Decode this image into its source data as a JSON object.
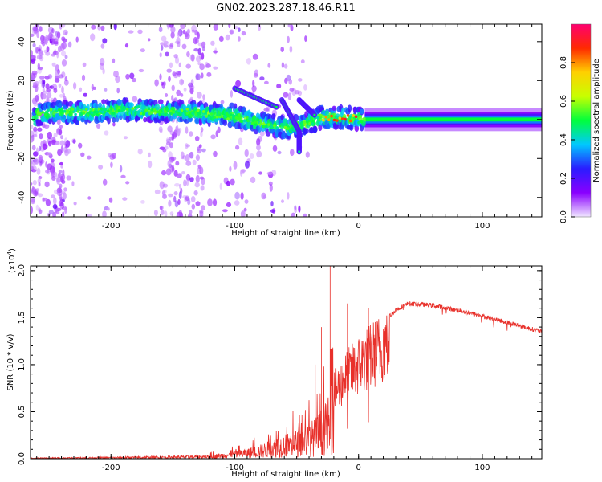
{
  "title": "GN02.2023.287.18.46.R11",
  "chart_data": [
    {
      "type": "heatmap",
      "xlabel": "Height of straight line (km)",
      "ylabel": "Frequency (Hz)",
      "xlim": [
        -265,
        148
      ],
      "ylim": [
        -50,
        49
      ],
      "xticks": [
        -200,
        -100,
        0,
        100
      ],
      "yticks": [
        -40,
        -20,
        0,
        20,
        40
      ],
      "colorbar": {
        "label": "Normalized spectral amplitude",
        "range": [
          0,
          1
        ],
        "ticks": [
          "0.0",
          "0.2",
          "0.4",
          "0.6",
          "0.8"
        ],
        "colormap": [
          "#f0e6ff",
          "#8a00ff",
          "#2a1cff",
          "#00c8ff",
          "#00ff3c",
          "#c8ff00",
          "#ffd000",
          "#ff2a00",
          "#ff0070"
        ]
      },
      "ridge": [
        {
          "x": -260,
          "y": 3
        },
        {
          "x": -220,
          "y": 4
        },
        {
          "x": -180,
          "y": 5
        },
        {
          "x": -150,
          "y": 4
        },
        {
          "x": -120,
          "y": 3
        },
        {
          "x": -100,
          "y": 2
        },
        {
          "x": -80,
          "y": -2
        },
        {
          "x": -60,
          "y": -4
        },
        {
          "x": -45,
          "y": -3
        },
        {
          "x": -30,
          "y": 1
        },
        {
          "x": -10,
          "y": 1
        },
        {
          "x": 5,
          "y": 0
        },
        {
          "x": 148,
          "y": 0
        }
      ],
      "branches": [
        {
          "x1": -100,
          "y1": 16,
          "x2": -65,
          "y2": 6
        },
        {
          "x1": -62,
          "y1": 10,
          "x2": -48,
          "y2": -6
        },
        {
          "x1": -48,
          "y1": 10,
          "x2": -35,
          "y2": 2
        },
        {
          "x1": -48,
          "y1": -6,
          "x2": -48,
          "y2": -17
        }
      ]
    },
    {
      "type": "line",
      "xlabel": "Height of straight line (km)",
      "ylabel": "SNR (10 * v/v)",
      "y_multiplier": "(x10",
      "y_multiplier_exp": "4",
      "y_multiplier_close": ")",
      "xlim": [
        -265,
        148
      ],
      "ylim": [
        0,
        2.05
      ],
      "xticks": [
        -200,
        -100,
        0,
        100
      ],
      "yticks": [
        "0.0",
        "0.5",
        "1.0",
        "1.5",
        "2.0"
      ],
      "color": "#e8302a",
      "envelope": [
        {
          "x": -265,
          "y": 0.01
        },
        {
          "x": -200,
          "y": 0.02
        },
        {
          "x": -150,
          "y": 0.03
        },
        {
          "x": -120,
          "y": 0.04
        },
        {
          "x": -100,
          "y": 0.08
        },
        {
          "x": -80,
          "y": 0.14
        },
        {
          "x": -60,
          "y": 0.25
        },
        {
          "x": -45,
          "y": 0.32
        },
        {
          "x": -35,
          "y": 0.42
        },
        {
          "x": -25,
          "y": 0.6
        },
        {
          "x": -20,
          "y": 0.85
        },
        {
          "x": -10,
          "y": 1.05
        },
        {
          "x": 0,
          "y": 1.2
        },
        {
          "x": 10,
          "y": 1.32
        },
        {
          "x": 20,
          "y": 1.45
        },
        {
          "x": 30,
          "y": 1.58
        },
        {
          "x": 40,
          "y": 1.65
        },
        {
          "x": 60,
          "y": 1.63
        },
        {
          "x": 90,
          "y": 1.55
        },
        {
          "x": 120,
          "y": 1.45
        },
        {
          "x": 148,
          "y": 1.35
        }
      ],
      "spikes": [
        {
          "x": -23,
          "y": 2.05
        },
        {
          "x": -30,
          "y": 1.4
        },
        {
          "x": -9,
          "y": 1.65
        },
        {
          "x": -35,
          "y": 1.0
        },
        {
          "x": 8,
          "y": 1.6
        }
      ]
    }
  ]
}
